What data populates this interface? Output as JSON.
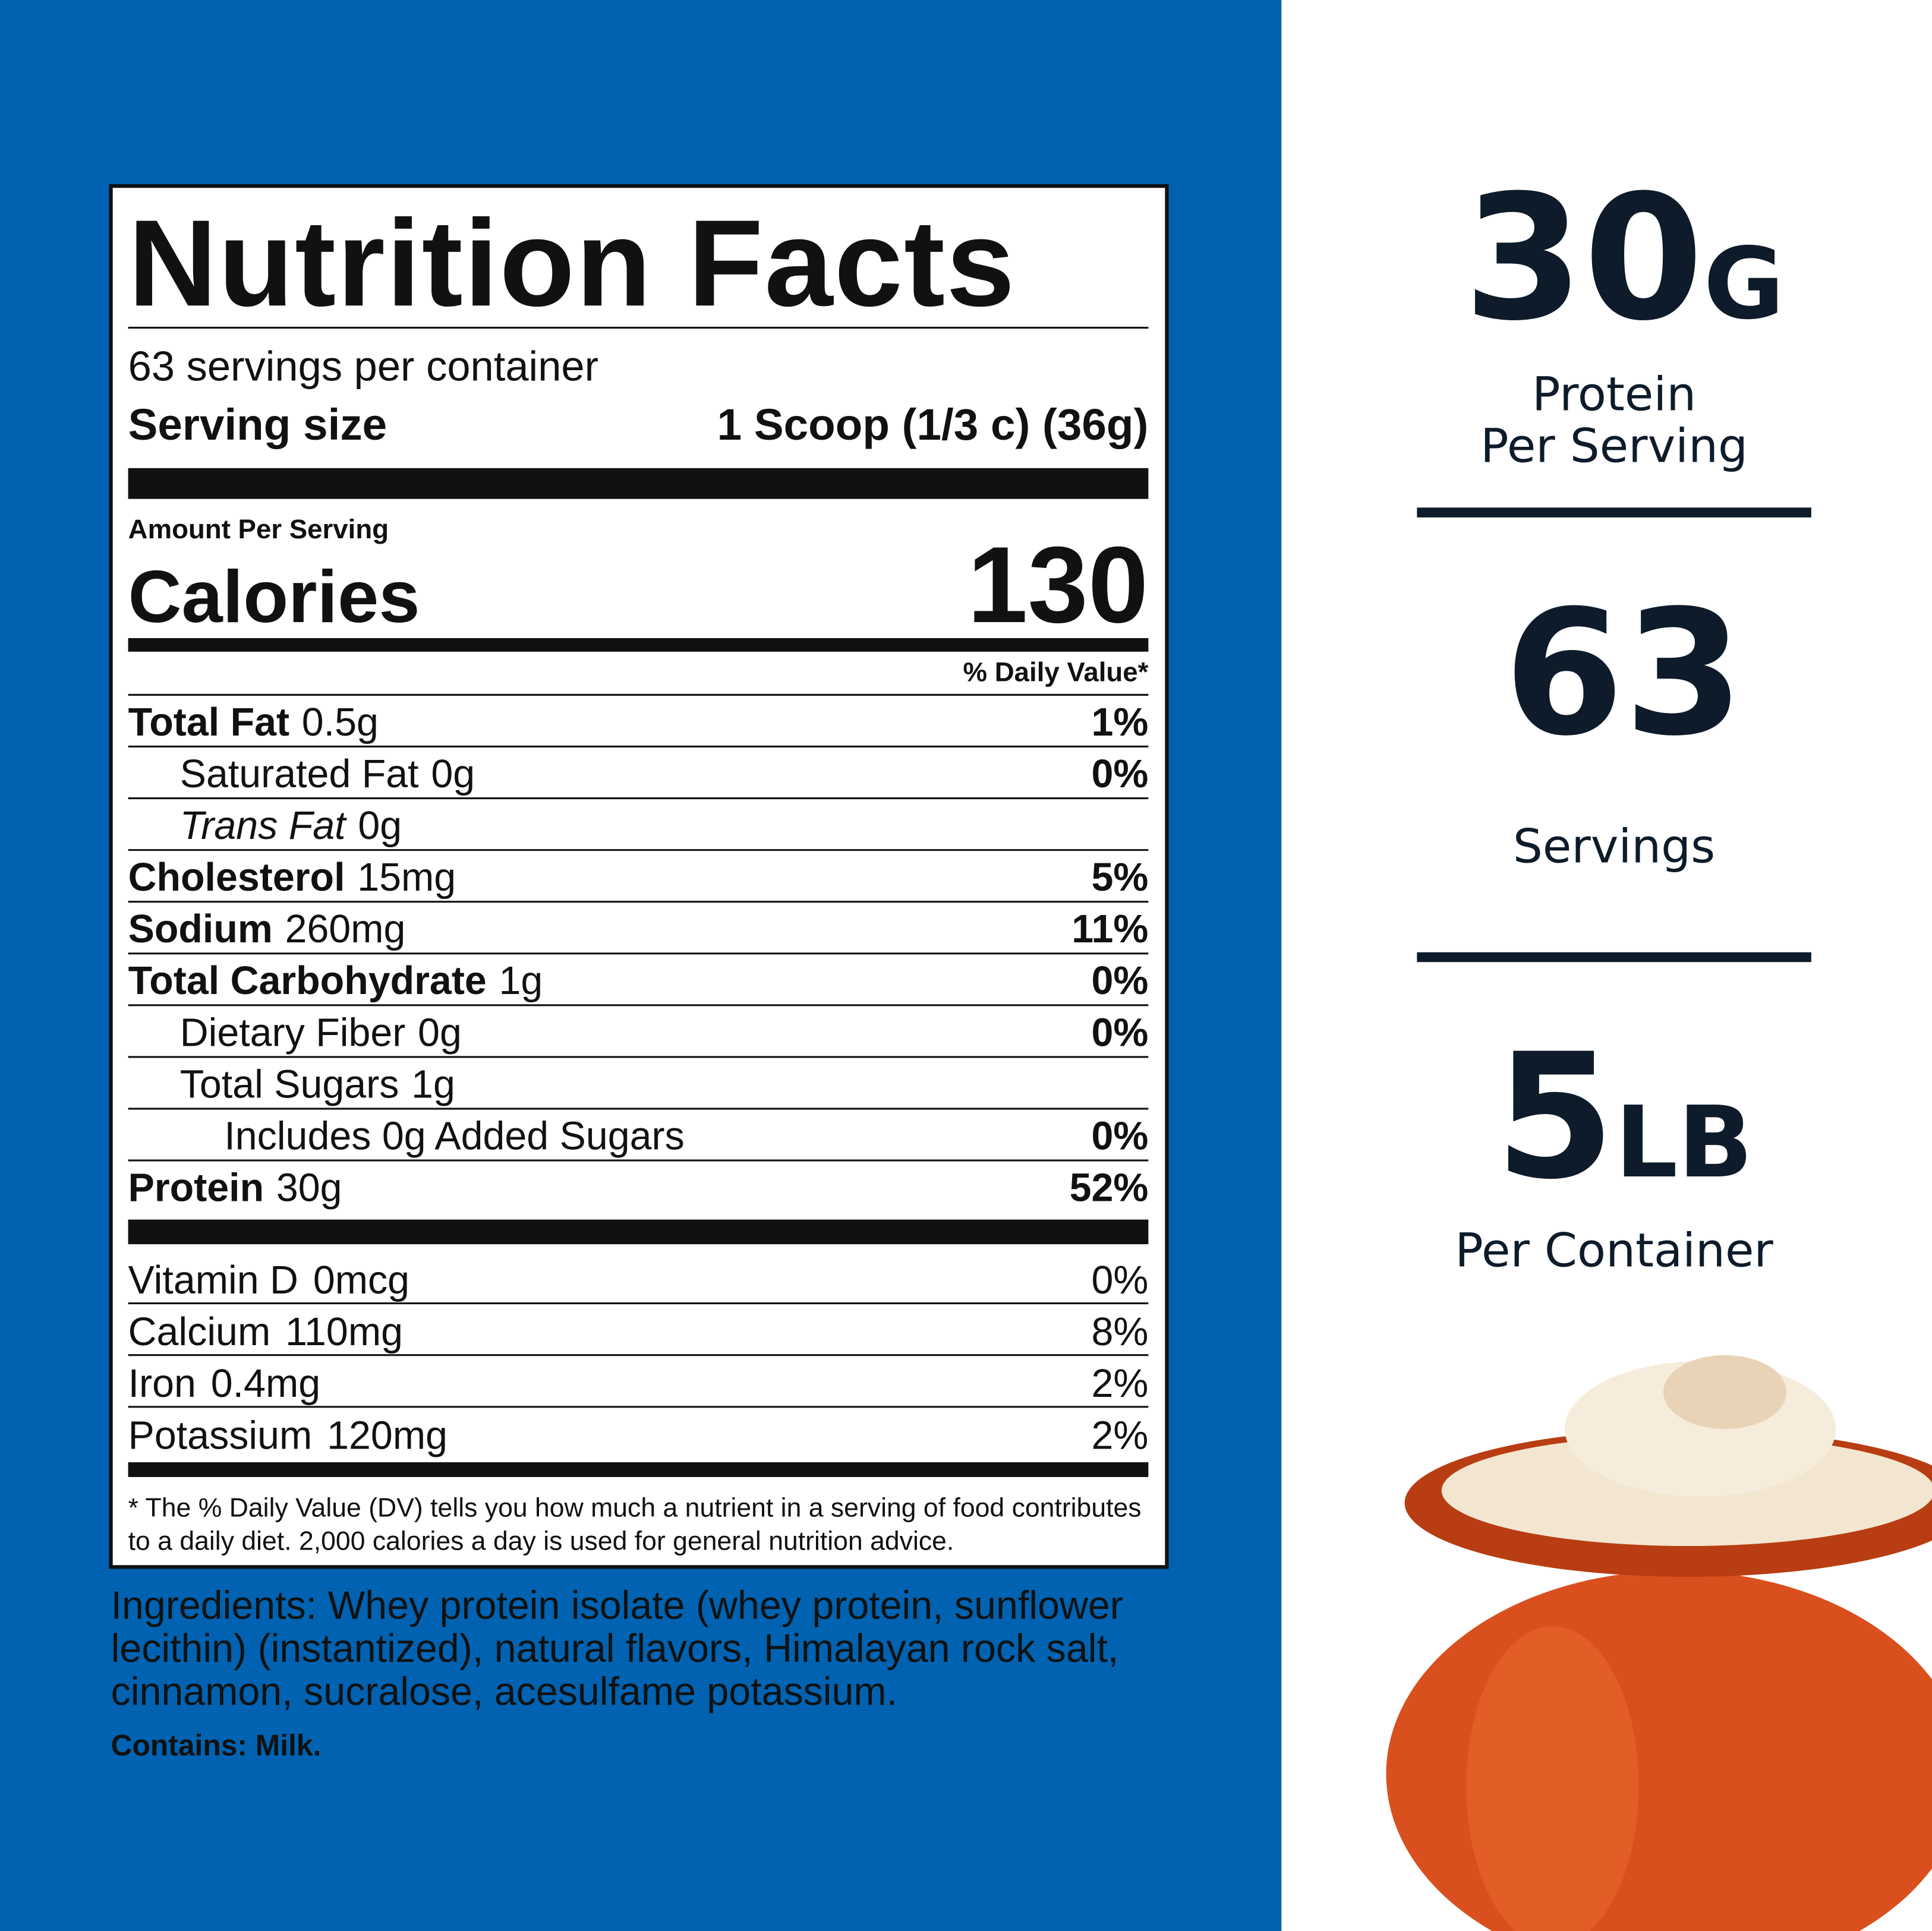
{
  "nutrition_facts": {
    "title": "Nutrition Facts",
    "servings_per_container": "63 servings per container",
    "serving_size_label": "Serving size",
    "serving_size_value": "1 Scoop (1/3 c) (36g)",
    "amount_per_serving": "Amount Per Serving",
    "calories_label": "Calories",
    "calories_value": "130",
    "daily_value_header": "% Daily Value*",
    "rows": [
      {
        "name": "Total Fat",
        "amount": "0.5g",
        "dv": "1%",
        "style": "bold",
        "indent": 0
      },
      {
        "name": "Saturated Fat",
        "amount": "0g",
        "dv": "0%",
        "style": "normal",
        "indent": 1
      },
      {
        "name": "Trans Fat",
        "amount": "0g",
        "style": "italic",
        "indent": 1
      },
      {
        "name": "Cholesterol",
        "amount": "15mg",
        "dv": "5%",
        "style": "bold",
        "indent": 0
      },
      {
        "name": "Sodium",
        "amount": "260mg",
        "dv": "11%",
        "style": "bold",
        "indent": 0
      },
      {
        "name": "Total Carbohydrate",
        "amount": "1g",
        "dv": "0%",
        "style": "bold",
        "indent": 0
      },
      {
        "name": "Dietary Fiber",
        "amount": "0g",
        "dv": "0%",
        "style": "normal",
        "indent": 1
      },
      {
        "name": "Total Sugars",
        "amount": "1g",
        "style": "normal",
        "indent": 1
      },
      {
        "name": "Includes 0g Added Sugars",
        "dv": "0%",
        "style": "normal",
        "indent": 2
      },
      {
        "name": "Protein",
        "amount": "30g",
        "dv": "52%",
        "style": "bold",
        "indent": 0
      }
    ],
    "vitamins": [
      {
        "name": "Vitamin D",
        "amount": "0mcg",
        "dv": "0%"
      },
      {
        "name": "Calcium",
        "amount": "110mg",
        "dv": "8%"
      },
      {
        "name": "Iron",
        "amount": "0.4mg",
        "dv": "2%"
      },
      {
        "name": "Potassium",
        "amount": "120mg",
        "dv": "2%"
      }
    ],
    "footnote": [
      "* The % Daily Value (DV) tells you how much a nutrient in a serving of food contributes",
      "to a daily diet. 2,000 calories a day is used for general nutrition advice."
    ]
  },
  "ingredients": {
    "lines": [
      "Ingredients: Whey protein isolate (whey protein, sunflower",
      "lecithin) (instantized), natural flavors, Himalayan rock salt,",
      "cinnamon, sucralose, acesulfame potassium."
    ],
    "contains": "Contains: Milk."
  },
  "highlights": [
    {
      "value": "30",
      "unit": "G",
      "label": [
        "Protein",
        "Per Serving"
      ]
    },
    {
      "value": "63",
      "label": [
        "Servings"
      ]
    },
    {
      "value": "5",
      "unit": "LB",
      "label": [
        "Per Container"
      ]
    }
  ]
}
